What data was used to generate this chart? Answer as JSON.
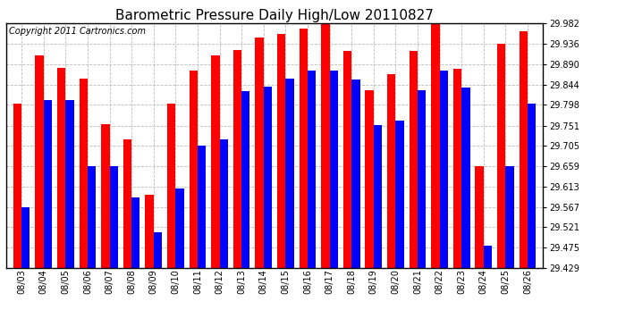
{
  "title": "Barometric Pressure Daily High/Low 20110827",
  "copyright": "Copyright 2011 Cartronics.com",
  "dates": [
    "08/03",
    "08/04",
    "08/05",
    "08/06",
    "08/07",
    "08/08",
    "08/09",
    "08/10",
    "08/11",
    "08/12",
    "08/13",
    "08/14",
    "08/15",
    "08/16",
    "08/17",
    "08/18",
    "08/19",
    "08/20",
    "08/21",
    "08/22",
    "08/23",
    "08/24",
    "08/25",
    "08/26"
  ],
  "highs": [
    29.8,
    29.91,
    29.882,
    29.858,
    29.755,
    29.72,
    29.595,
    29.8,
    29.875,
    29.91,
    29.921,
    29.95,
    29.958,
    29.97,
    29.98,
    29.92,
    29.83,
    29.868,
    29.92,
    29.982,
    29.88,
    29.66,
    29.936,
    29.965
  ],
  "lows": [
    29.567,
    29.808,
    29.808,
    29.66,
    29.66,
    29.588,
    29.51,
    29.608,
    29.705,
    29.72,
    29.828,
    29.84,
    29.858,
    29.875,
    29.875,
    29.855,
    29.752,
    29.762,
    29.83,
    29.875,
    29.838,
    29.479,
    29.66,
    29.8
  ],
  "high_color": "#ff0000",
  "low_color": "#0000ff",
  "bg_color": "#ffffff",
  "grid_color": "#bbbbbb",
  "ymin": 29.429,
  "ymax": 29.982,
  "yticks": [
    29.429,
    29.475,
    29.521,
    29.567,
    29.613,
    29.659,
    29.705,
    29.751,
    29.798,
    29.844,
    29.89,
    29.936,
    29.982
  ],
  "title_fontsize": 11,
  "copyright_fontsize": 7,
  "tick_fontsize": 7,
  "bar_width": 0.38
}
